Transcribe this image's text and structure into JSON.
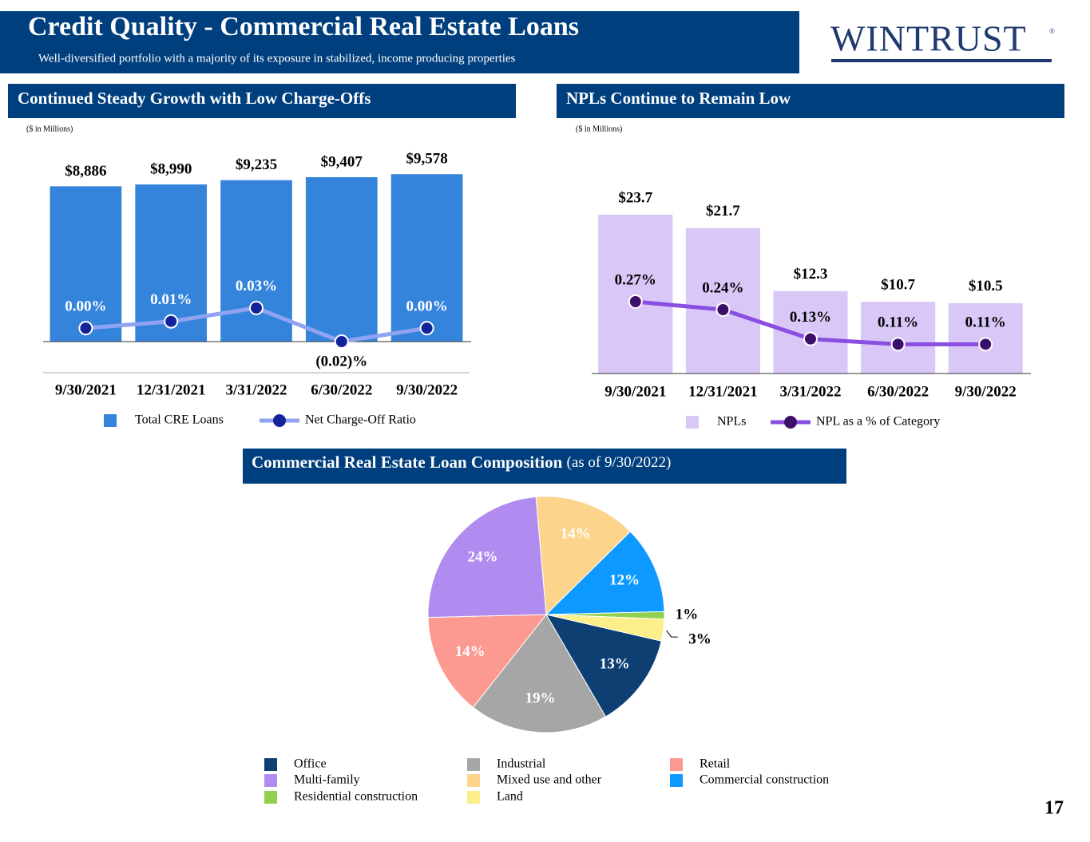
{
  "header": {
    "title": "Credit Quality - Commercial Real Estate Loans",
    "subtitle": "Well-diversified portfolio with a majority of its exposure in stabilized, income producing properties",
    "logo": "WINTRUST",
    "logo_mark": "®"
  },
  "page_number": "17",
  "chart_data": [
    {
      "type": "bar",
      "title": "Continued Steady Growth with Low Charge-Offs",
      "note": "($ in Millions)",
      "categories": [
        "9/30/2021",
        "12/31/2021",
        "3/31/2022",
        "6/30/2022",
        "9/30/2022"
      ],
      "ylim": [
        0,
        10000
      ],
      "y2lim": [
        -0.02,
        0.24
      ],
      "series": [
        {
          "name": "Total CRE Loans",
          "type": "bar",
          "color": "#3584dc",
          "values": [
            8886,
            8990,
            9235,
            9407,
            9578
          ],
          "value_labels": [
            "$8,886",
            "$8,990",
            "$9,235",
            "$9,407",
            "$9,578"
          ]
        },
        {
          "name": "Net Charge-Off Ratio",
          "type": "line",
          "axis": "y2",
          "color": "#8fa3f2",
          "marker_color": "#13239a",
          "values": [
            0.0,
            0.01,
            0.03,
            -0.02,
            0.0
          ],
          "value_labels": [
            "0.00%",
            "0.01%",
            "0.03%",
            "(0.02)%",
            "0.00%"
          ]
        }
      ]
    },
    {
      "type": "bar",
      "title": "NPLs Continue to Remain Low",
      "note": "($ in Millions)",
      "categories": [
        "9/30/2021",
        "12/31/2021",
        "3/31/2022",
        "6/30/2022",
        "9/30/2022"
      ],
      "ylim": [
        0,
        25
      ],
      "y2lim": [
        0,
        0.63
      ],
      "series": [
        {
          "name": "NPLs",
          "type": "bar",
          "color": "#d9c8f7",
          "values": [
            23.7,
            21.7,
            12.3,
            10.7,
            10.5
          ],
          "value_labels": [
            "$23.7",
            "$21.7",
            "$12.3",
            "$10.7",
            "$10.5"
          ]
        },
        {
          "name": "NPL as a % of Category",
          "type": "line",
          "axis": "y2",
          "color": "#8a4fe0",
          "marker_color": "#3c0f6b",
          "values": [
            0.27,
            0.24,
            0.13,
            0.11,
            0.11
          ],
          "value_labels": [
            "0.27%",
            "0.24%",
            "0.13%",
            "0.11%",
            "0.11%"
          ]
        }
      ]
    },
    {
      "type": "pie",
      "title": "Commercial Real Estate Loan Composition",
      "subtitle": "(as of 9/30/2022)",
      "categories": [
        "Mixed use and other",
        "Commercial construction",
        "Residential construction",
        "Land",
        "Office",
        "Industrial",
        "Retail",
        "Multi-family"
      ],
      "values": [
        14,
        12,
        1,
        3,
        13,
        19,
        14,
        24
      ],
      "value_labels": [
        "14%",
        "12%",
        "1%",
        "3%",
        "13%",
        "19%",
        "14%",
        "24%"
      ],
      "colors": [
        "#fcd48c",
        "#0d99ff",
        "#92d050",
        "#fcef8a",
        "#0d3f73",
        "#a6a6a6",
        "#fc9990",
        "#b08cf0"
      ]
    }
  ]
}
